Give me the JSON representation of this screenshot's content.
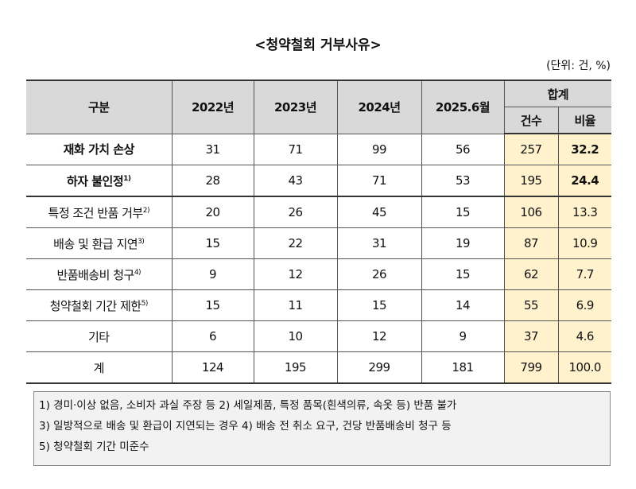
{
  "title": "<청약철회 거부사유>",
  "unit": "(단위: 건, %)",
  "header": {
    "category": "구분",
    "years": [
      "2022년",
      "2023년",
      "2024년",
      "2025.6월"
    ],
    "total": "합계",
    "count": "건수",
    "ratio": "비율"
  },
  "rows": [
    {
      "label": "재화 가치 손상",
      "sup": "",
      "values": [
        "31",
        "71",
        "99",
        "56",
        "257",
        "32.2"
      ]
    },
    {
      "label": "하자 불인정",
      "sup": "1)",
      "values": [
        "28",
        "43",
        "71",
        "53",
        "195",
        "24.4"
      ]
    },
    {
      "label": "특정 조건 반품 거부",
      "sup": "2)",
      "values": [
        "20",
        "26",
        "45",
        "15",
        "106",
        "13.3"
      ]
    },
    {
      "label": "배송 및 환급 지연",
      "sup": "3)",
      "values": [
        "15",
        "22",
        "31",
        "19",
        "87",
        "10.9"
      ]
    },
    {
      "label": "반품배송비 청구",
      "sup": "4)",
      "values": [
        "9",
        "12",
        "26",
        "15",
        "62",
        "7.7"
      ]
    },
    {
      "label": "청약철회 기간 제한",
      "sup": "5)",
      "values": [
        "15",
        "11",
        "15",
        "14",
        "55",
        "6.9"
      ]
    },
    {
      "label": "기타",
      "sup": "",
      "values": [
        "6",
        "10",
        "12",
        "9",
        "37",
        "4.6"
      ]
    },
    {
      "label": "계",
      "sup": "",
      "values": [
        "124",
        "195",
        "299",
        "181",
        "799",
        "100.0"
      ]
    }
  ],
  "notes": [
    "1) 경미·이상 없음, 소비자 과실 주장 등  2) 세일제품, 특정 품목(흰색의류, 속옷 등) 반품 불가",
    "3) 일방적으로 배송 및 환급이 지연되는 경우  4) 배송 전 취소 요구, 건당 반품배송비 청구 등",
    "5) 청약철회 기간 미준수"
  ],
  "colors": {
    "header_bg": "#d9d9d9",
    "total_bg": "#fff2cc"
  }
}
